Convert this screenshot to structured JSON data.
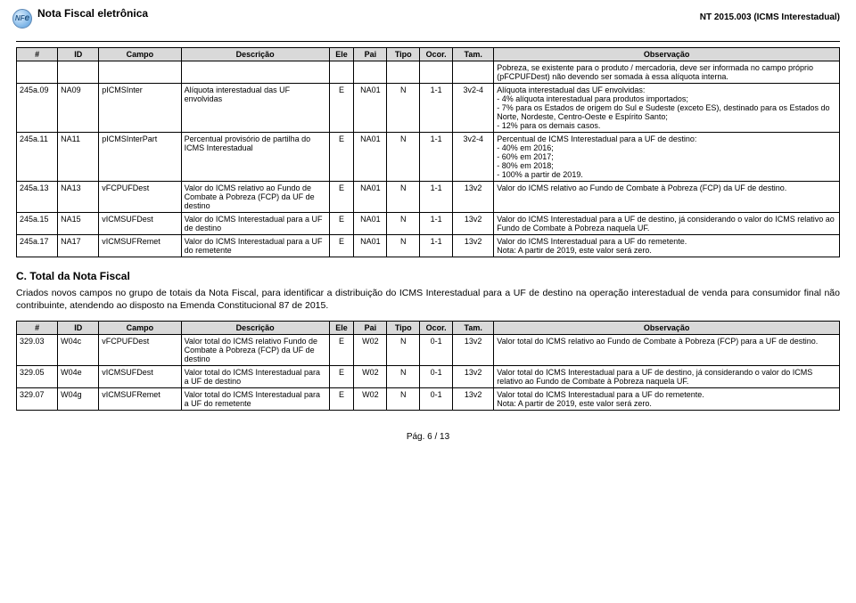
{
  "header": {
    "logo_label": "NF",
    "logo_sub": "e",
    "title": "Nota Fiscal eletrônica",
    "code": "NT 2015.003 (ICMS Interestadual)"
  },
  "table1": {
    "columns": [
      "#",
      "ID",
      "Campo",
      "Descrição",
      "Ele",
      "Pai",
      "Tipo",
      "Ocor.",
      "Tam.",
      "Observação"
    ],
    "rows": [
      {
        "num": "",
        "id": "",
        "campo": "",
        "desc": "",
        "ele": "",
        "pai": "",
        "tipo": "",
        "ocor": "",
        "tam": "",
        "obs": "Pobreza, se existente para o produto / mercadoria, deve ser informada no campo próprio (pFCPUFDest) não devendo ser somada à essa alíquota interna."
      },
      {
        "num": "245a.09",
        "id": "NA09",
        "campo": "pICMSInter",
        "desc": "Alíquota interestadual das UF envolvidas",
        "ele": "E",
        "pai": "NA01",
        "tipo": "N",
        "ocor": "1-1",
        "tam": "3v2-4",
        "obs": "Alíquota interestadual das UF envolvidas:\n- 4% alíquota interestadual para produtos importados;\n- 7% para os Estados de origem do Sul e Sudeste (exceto ES), destinado para os Estados do Norte, Nordeste, Centro-Oeste e Espírito Santo;\n- 12% para os demais casos."
      },
      {
        "num": "245a.11",
        "id": "NA11",
        "campo": "pICMSInterPart",
        "desc": "Percentual provisório de partilha do ICMS Interestadual",
        "ele": "E",
        "pai": "NA01",
        "tipo": "N",
        "ocor": "1-1",
        "tam": "3v2-4",
        "obs": "Percentual de ICMS Interestadual para a UF de destino:\n- 40% em 2016;\n- 60% em 2017;\n- 80% em 2018;\n- 100% a partir de 2019."
      },
      {
        "num": "245a.13",
        "id": "NA13",
        "campo": "vFCPUFDest",
        "desc": "Valor do ICMS relativo ao Fundo de Combate à Pobreza (FCP) da UF de destino",
        "ele": "E",
        "pai": "NA01",
        "tipo": "N",
        "ocor": "1-1",
        "tam": "13v2",
        "obs": "Valor do ICMS relativo ao Fundo de Combate à Pobreza (FCP) da UF de destino."
      },
      {
        "num": "245a.15",
        "id": "NA15",
        "campo": "vICMSUFDest",
        "desc": "Valor do ICMS Interestadual para a UF de destino",
        "ele": "E",
        "pai": "NA01",
        "tipo": "N",
        "ocor": "1-1",
        "tam": "13v2",
        "obs": "Valor do ICMS Interestadual para a UF de destino, já considerando o valor do ICMS relativo ao Fundo de Combate à Pobreza naquela UF."
      },
      {
        "num": "245a.17",
        "id": "NA17",
        "campo": "vICMSUFRemet",
        "desc": "Valor do ICMS Interestadual para a UF do remetente",
        "ele": "E",
        "pai": "NA01",
        "tipo": "N",
        "ocor": "1-1",
        "tam": "13v2",
        "obs": "Valor do ICMS Interestadual para a UF do remetente.\nNota: A partir de 2019, este valor será zero."
      }
    ]
  },
  "section": {
    "title": "C. Total da Nota Fiscal",
    "para": "Criados novos campos no grupo de totais da Nota Fiscal, para identificar a distribuição do ICMS Interestadual para a UF de destino na operação interestadual de venda para consumidor final não contribuinte, atendendo ao disposto na Emenda Constitucional 87 de 2015."
  },
  "table2": {
    "columns": [
      "#",
      "ID",
      "Campo",
      "Descrição",
      "Ele",
      "Pai",
      "Tipo",
      "Ocor.",
      "Tam.",
      "Observação"
    ],
    "rows": [
      {
        "num": "329.03",
        "id": "W04c",
        "campo": "vFCPUFDest",
        "desc": "Valor total do ICMS relativo Fundo de Combate à Pobreza (FCP) da UF de destino",
        "ele": "E",
        "pai": "W02",
        "tipo": "N",
        "ocor": "0-1",
        "tam": "13v2",
        "obs": "Valor total do ICMS relativo ao Fundo de Combate à Pobreza (FCP) para a UF de destino."
      },
      {
        "num": "329.05",
        "id": "W04e",
        "campo": "vICMSUFDest",
        "desc": "Valor total do ICMS Interestadual para a UF de destino",
        "ele": "E",
        "pai": "W02",
        "tipo": "N",
        "ocor": "0-1",
        "tam": "13v2",
        "obs": "Valor total do ICMS Interestadual para a UF de destino, já considerando o valor do ICMS relativo ao Fundo de Combate à Pobreza naquela UF."
      },
      {
        "num": "329.07",
        "id": "W04g",
        "campo": "vICMSUFRemet",
        "desc": "Valor total do ICMS Interestadual para a UF do remetente",
        "ele": "E",
        "pai": "W02",
        "tipo": "N",
        "ocor": "0-1",
        "tam": "13v2",
        "obs": "Valor total do ICMS Interestadual para a UF do remetente.\nNota: A partir de 2019, este valor será zero."
      }
    ]
  },
  "footer": {
    "page": "Pág. 6 / 13"
  }
}
